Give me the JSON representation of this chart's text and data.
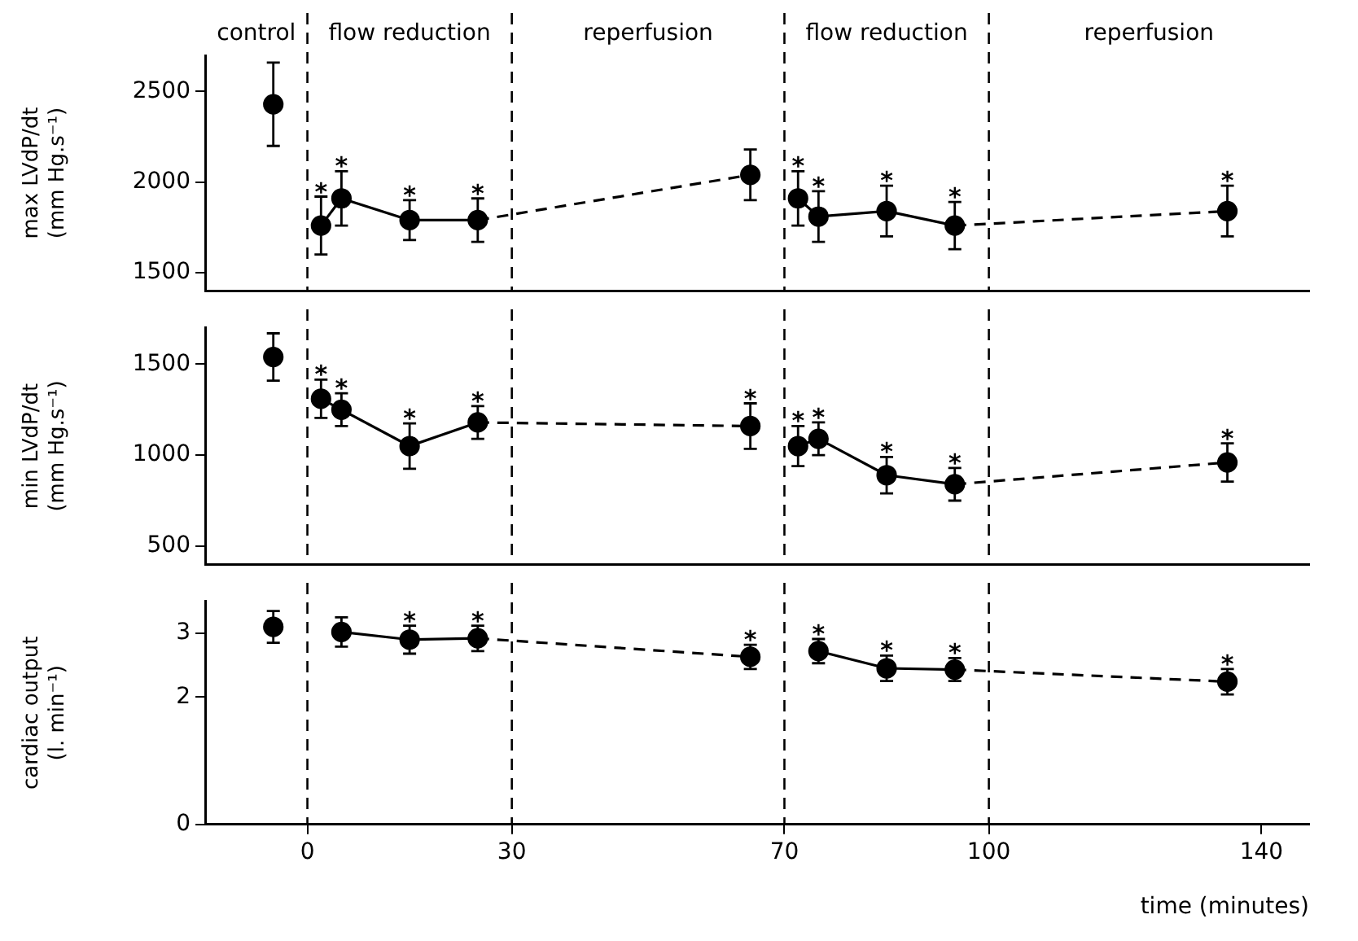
{
  "chart_data": [
    {
      "type": "line",
      "ylabel": "max LVdP/dt\n(mm Hg.s⁻¹)",
      "xlim": [
        -15,
        147
      ],
      "ylim": [
        1400,
        2700
      ],
      "yticks": [
        1500,
        2000,
        2500
      ],
      "xticks": [
        0,
        30,
        70,
        100,
        140
      ],
      "tick_labels": "y",
      "grid": false,
      "legend": false,
      "annotations": [
        "control",
        "flow reduction",
        "reperfusion",
        "flow reduction",
        "reperfusion"
      ],
      "ref_lines": [
        {
          "axis": "x",
          "value": 0,
          "line_style": "dashed"
        },
        {
          "axis": "x",
          "value": 30,
          "line_style": "dashed"
        },
        {
          "axis": "x",
          "value": 70,
          "line_style": "dashed"
        },
        {
          "axis": "x",
          "value": 100,
          "line_style": "dashed"
        }
      ],
      "series": [
        {
          "type": "scatter",
          "color": "#000000",
          "marker": "circle",
          "x": [
            -5
          ],
          "values": [
            2430
          ],
          "errors": [
            230
          ],
          "value_labels": [
            null
          ]
        },
        {
          "type": "line",
          "color": "#000000",
          "marker": "circle",
          "line_style": "solid",
          "x": [
            2,
            5,
            15,
            25
          ],
          "values": [
            1760,
            1910,
            1790,
            1790
          ],
          "errors": [
            160,
            150,
            110,
            120
          ],
          "value_labels": [
            "*",
            "*",
            "*",
            "*"
          ]
        },
        {
          "type": "line",
          "color": "#000000",
          "marker": "none",
          "line_style": "dashed",
          "x": [
            25,
            65
          ],
          "values": [
            1790,
            2040
          ]
        },
        {
          "type": "scatter",
          "color": "#000000",
          "marker": "circle",
          "x": [
            65
          ],
          "values": [
            2040
          ],
          "errors": [
            140
          ],
          "value_labels": [
            null
          ]
        },
        {
          "type": "line",
          "color": "#000000",
          "marker": "circle",
          "line_style": "solid",
          "x": [
            72,
            75,
            85,
            95
          ],
          "values": [
            1910,
            1810,
            1840,
            1760
          ],
          "errors": [
            150,
            140,
            140,
            130
          ],
          "value_labels": [
            "*",
            "*",
            "*",
            "*"
          ]
        },
        {
          "type": "line",
          "color": "#000000",
          "marker": "none",
          "line_style": "dashed",
          "x": [
            95,
            135
          ],
          "values": [
            1760,
            1840
          ]
        },
        {
          "type": "scatter",
          "color": "#000000",
          "marker": "circle",
          "x": [
            135
          ],
          "values": [
            1840
          ],
          "errors": [
            140
          ],
          "value_labels": [
            "*"
          ]
        }
      ]
    },
    {
      "type": "line",
      "ylabel": "min LVdP/dt\n(mm Hg.s⁻¹)",
      "xlim": [
        -15,
        147
      ],
      "ylim": [
        400,
        1700
      ],
      "yticks": [
        500,
        1000,
        1500
      ],
      "xticks": [
        0,
        30,
        70,
        100,
        140
      ],
      "tick_labels": "y",
      "grid": false,
      "legend": false,
      "ref_lines": [
        {
          "axis": "x",
          "value": 0,
          "line_style": "dashed"
        },
        {
          "axis": "x",
          "value": 30,
          "line_style": "dashed"
        },
        {
          "axis": "x",
          "value": 70,
          "line_style": "dashed"
        },
        {
          "axis": "x",
          "value": 100,
          "line_style": "dashed"
        }
      ],
      "series": [
        {
          "type": "scatter",
          "color": "#000000",
          "marker": "circle",
          "x": [
            -5
          ],
          "values": [
            1540
          ],
          "errors": [
            130
          ],
          "value_labels": [
            null
          ]
        },
        {
          "type": "line",
          "color": "#000000",
          "marker": "circle",
          "line_style": "solid",
          "x": [
            2,
            5,
            15,
            25
          ],
          "values": [
            1310,
            1250,
            1050,
            1180
          ],
          "errors": [
            105,
            90,
            125,
            90
          ],
          "value_labels": [
            "*",
            "*",
            "*",
            "*"
          ]
        },
        {
          "type": "line",
          "color": "#000000",
          "marker": "none",
          "line_style": "dashed",
          "x": [
            25,
            65
          ],
          "values": [
            1180,
            1160
          ]
        },
        {
          "type": "scatter",
          "color": "#000000",
          "marker": "circle",
          "x": [
            65
          ],
          "values": [
            1160
          ],
          "errors": [
            125
          ],
          "value_labels": [
            "*"
          ]
        },
        {
          "type": "line",
          "color": "#000000",
          "marker": "circle",
          "line_style": "solid",
          "x": [
            72,
            75,
            85,
            95
          ],
          "values": [
            1050,
            1090,
            890,
            840
          ],
          "errors": [
            110,
            90,
            100,
            90
          ],
          "value_labels": [
            "*",
            "*",
            "*",
            "*"
          ]
        },
        {
          "type": "line",
          "color": "#000000",
          "marker": "none",
          "line_style": "dashed",
          "x": [
            95,
            135
          ],
          "values": [
            840,
            960
          ]
        },
        {
          "type": "scatter",
          "color": "#000000",
          "marker": "circle",
          "x": [
            135
          ],
          "values": [
            960
          ],
          "errors": [
            105
          ],
          "value_labels": [
            "*"
          ]
        }
      ]
    },
    {
      "type": "line",
      "ylabel": "cardiac output\n(l. min⁻¹)",
      "xlabel": "time (minutes)",
      "xlim": [
        -15,
        147
      ],
      "ylim": [
        0,
        3.5
      ],
      "yticks": [
        0,
        2,
        3
      ],
      "xticks": [
        0,
        30,
        70,
        100,
        140
      ],
      "grid": false,
      "legend": false,
      "ref_lines": [
        {
          "axis": "x",
          "value": 0,
          "line_style": "dashed"
        },
        {
          "axis": "x",
          "value": 30,
          "line_style": "dashed"
        },
        {
          "axis": "x",
          "value": 70,
          "line_style": "dashed"
        },
        {
          "axis": "x",
          "value": 100,
          "line_style": "dashed"
        }
      ],
      "series": [
        {
          "type": "scatter",
          "color": "#000000",
          "marker": "circle",
          "x": [
            -5
          ],
          "values": [
            3.1
          ],
          "errors": [
            0.25
          ],
          "value_labels": [
            null
          ]
        },
        {
          "type": "line",
          "color": "#000000",
          "marker": "circle",
          "line_style": "solid",
          "x": [
            5,
            15,
            25
          ],
          "values": [
            3.02,
            2.9,
            2.92
          ],
          "errors": [
            0.23,
            0.22,
            0.2
          ],
          "value_labels": [
            null,
            "*",
            "*"
          ]
        },
        {
          "type": "line",
          "color": "#000000",
          "marker": "none",
          "line_style": "dashed",
          "x": [
            25,
            65
          ],
          "values": [
            2.92,
            2.63
          ]
        },
        {
          "type": "scatter",
          "color": "#000000",
          "marker": "circle",
          "x": [
            65
          ],
          "values": [
            2.63
          ],
          "errors": [
            0.19
          ],
          "value_labels": [
            "*"
          ]
        },
        {
          "type": "line",
          "color": "#000000",
          "marker": "circle",
          "line_style": "solid",
          "x": [
            75,
            85,
            95
          ],
          "values": [
            2.72,
            2.45,
            2.43
          ],
          "errors": [
            0.19,
            0.2,
            0.18
          ],
          "value_labels": [
            "*",
            "*",
            "*"
          ]
        },
        {
          "type": "line",
          "color": "#000000",
          "marker": "none",
          "line_style": "dashed",
          "x": [
            95,
            135
          ],
          "values": [
            2.43,
            2.24
          ]
        },
        {
          "type": "scatter",
          "color": "#000000",
          "marker": "circle",
          "x": [
            135
          ],
          "values": [
            2.24
          ],
          "errors": [
            0.2
          ],
          "value_labels": [
            "*"
          ]
        }
      ]
    }
  ]
}
